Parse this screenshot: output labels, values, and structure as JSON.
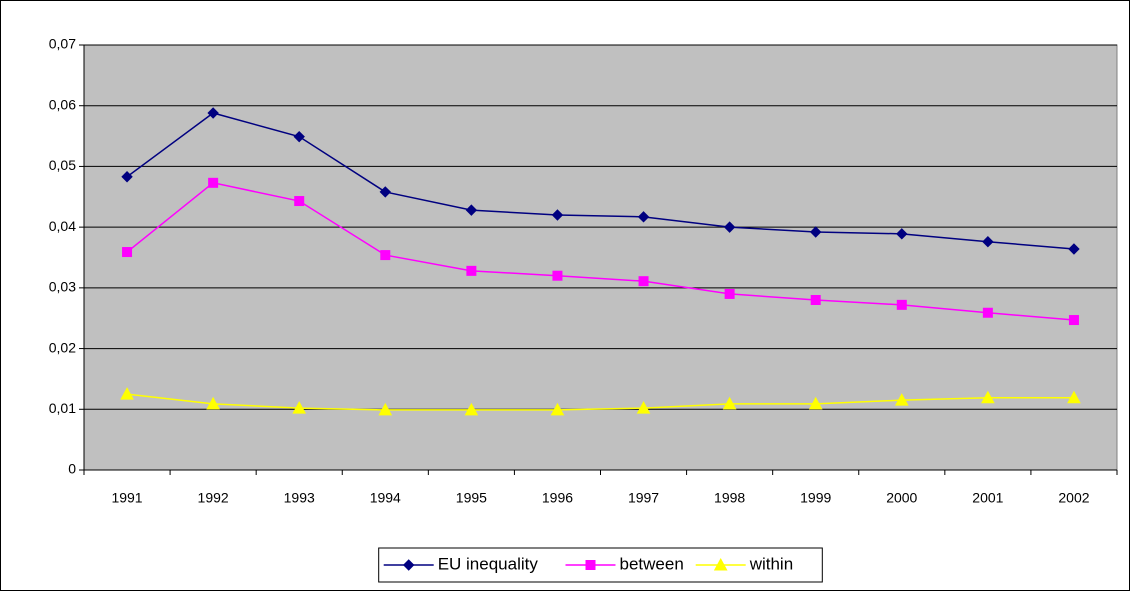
{
  "chart_data": {
    "type": "line",
    "categories": [
      "1991",
      "1992",
      "1993",
      "1994",
      "1995",
      "1996",
      "1997",
      "1998",
      "1999",
      "2000",
      "2001",
      "2002"
    ],
    "series": [
      {
        "name": "EU inequality",
        "color": "#000080",
        "marker": "diamond",
        "values": [
          0.0483,
          0.0588,
          0.0549,
          0.0458,
          0.0428,
          0.042,
          0.0417,
          0.04,
          0.0392,
          0.0389,
          0.0376,
          0.0364
        ]
      },
      {
        "name": "between",
        "color": "#ff00ff",
        "marker": "square",
        "values": [
          0.0359,
          0.0473,
          0.0443,
          0.0354,
          0.0328,
          0.032,
          0.0311,
          0.029,
          0.028,
          0.0272,
          0.0259,
          0.0247
        ]
      },
      {
        "name": "within",
        "color": "#ffff00",
        "marker": "triangle",
        "values": [
          0.0125,
          0.0109,
          0.0102,
          0.0099,
          0.0099,
          0.0099,
          0.0102,
          0.0109,
          0.0109,
          0.0115,
          0.0119,
          0.0119
        ]
      }
    ],
    "ylim": [
      0,
      0.07
    ],
    "yticks": [
      0,
      {
        "value": 0.01,
        "label": "0,01"
      },
      {
        "value": 0.02,
        "label": "0,02"
      },
      {
        "value": 0.03,
        "label": "0,03"
      },
      {
        "value": 0.04,
        "label": "0,04"
      },
      {
        "value": 0.05,
        "label": "0,05"
      },
      {
        "value": 0.06,
        "label": "0,06"
      },
      {
        "value": 0.07,
        "label": "0,07"
      }
    ],
    "grid": true,
    "legend": "bottom",
    "plot_background": "#c0c0c0"
  }
}
